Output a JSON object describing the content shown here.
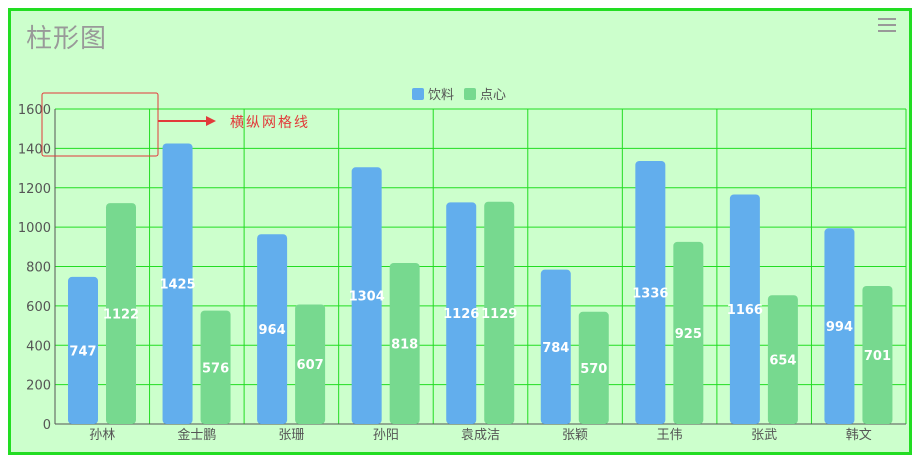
{
  "title": "柱形图",
  "annotation": "横纵网格线",
  "icons": {
    "menu": "menu-icon"
  },
  "colors": {
    "background": "#ccffcc",
    "frame_border": "#22dd22",
    "grid": "#22dd22",
    "drinks": "#62aeed",
    "snacks": "#77d98f",
    "annotation": "#e23a3a"
  },
  "chart_data": {
    "type": "bar",
    "categories": [
      "孙林",
      "金士鹏",
      "张珊",
      "孙阳",
      "袁成洁",
      "张颖",
      "王伟",
      "张武",
      "韩文"
    ],
    "series": [
      {
        "name": "饮料",
        "values": [
          747,
          1425,
          964,
          1304,
          1126,
          784,
          1336,
          1166,
          994
        ]
      },
      {
        "name": "点心",
        "values": [
          1122,
          576,
          607,
          818,
          1129,
          570,
          925,
          654,
          701
        ]
      }
    ],
    "yticks": [
      "0",
      "200",
      "400",
      "600",
      "800",
      "1000",
      "1200",
      "1400",
      "1600"
    ],
    "ylim": [
      0,
      1600
    ],
    "grid": "both",
    "legend": "top-center"
  }
}
